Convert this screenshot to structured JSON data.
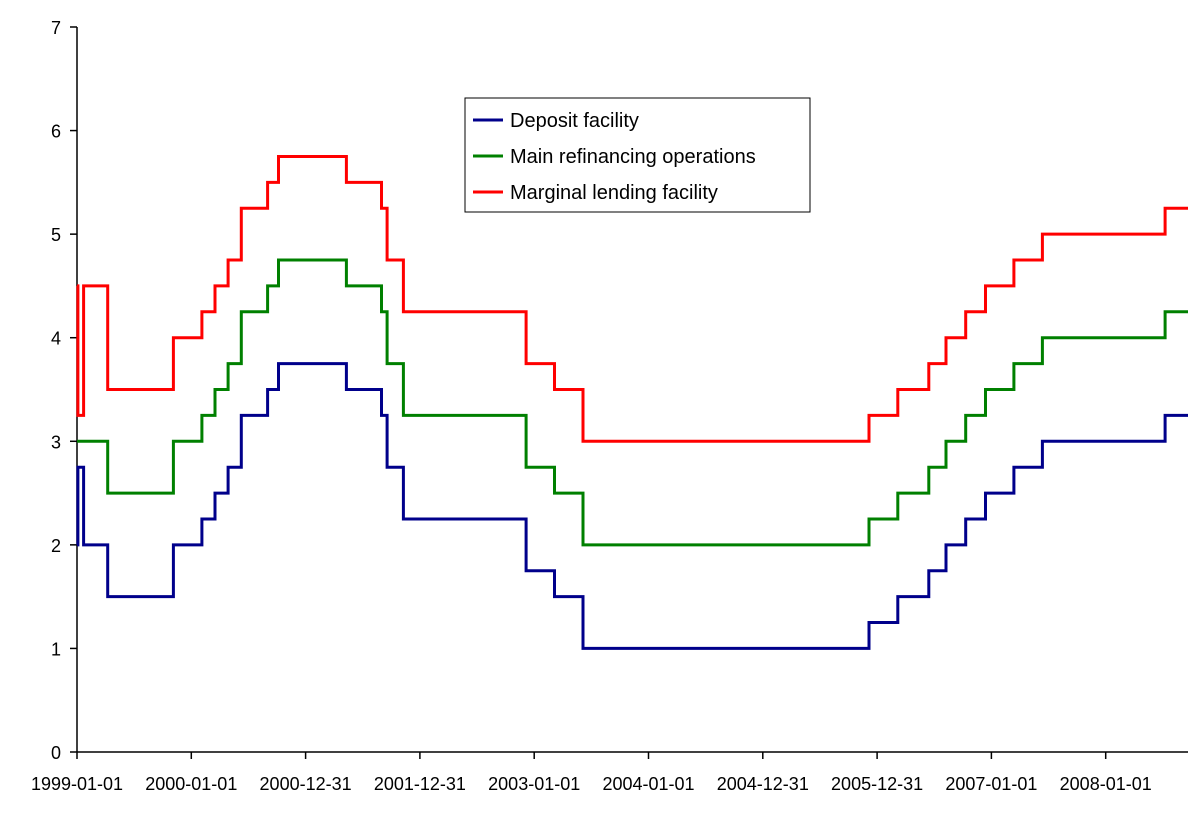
{
  "chart_data": {
    "type": "line",
    "step": true,
    "title": "",
    "xlabel": "",
    "ylabel": "",
    "x_type": "date",
    "xlim": [
      "1999-01-01",
      "2008-09-30"
    ],
    "ylim": [
      0,
      7
    ],
    "y_ticks": [
      0,
      1,
      2,
      3,
      4,
      5,
      6,
      7
    ],
    "x_tick_labels": [
      "1999-01-01",
      "2000-01-01",
      "2000-12-31",
      "2001-12-31",
      "2003-01-01",
      "2004-01-01",
      "2004-12-31",
      "2005-12-31",
      "2007-01-01",
      "2008-01-01"
    ],
    "grid": false,
    "legend_position": "top-center",
    "series": [
      {
        "name": "Deposit facility",
        "color": "#00008b",
        "points": [
          [
            "1999-01-01",
            2.0
          ],
          [
            "1999-01-04",
            2.75
          ],
          [
            "1999-01-22",
            2.0
          ],
          [
            "1999-04-09",
            1.5
          ],
          [
            "1999-11-05",
            2.0
          ],
          [
            "2000-02-04",
            2.25
          ],
          [
            "2000-03-17",
            2.5
          ],
          [
            "2000-04-28",
            2.75
          ],
          [
            "2000-06-09",
            3.25
          ],
          [
            "2000-09-01",
            3.5
          ],
          [
            "2000-10-06",
            3.75
          ],
          [
            "2001-05-11",
            3.5
          ],
          [
            "2001-08-31",
            3.25
          ],
          [
            "2001-09-18",
            2.75
          ],
          [
            "2001-11-09",
            2.25
          ],
          [
            "2002-12-06",
            1.75
          ],
          [
            "2003-03-07",
            1.5
          ],
          [
            "2003-06-06",
            1.0
          ],
          [
            "2005-12-06",
            1.25
          ],
          [
            "2006-03-08",
            1.5
          ],
          [
            "2006-06-15",
            1.75
          ],
          [
            "2006-08-09",
            2.0
          ],
          [
            "2006-10-11",
            2.25
          ],
          [
            "2006-12-13",
            2.5
          ],
          [
            "2007-03-14",
            2.75
          ],
          [
            "2007-06-13",
            3.0
          ],
          [
            "2008-07-09",
            3.25
          ],
          [
            "2008-09-30",
            3.25
          ]
        ]
      },
      {
        "name": "Main refinancing operations",
        "color": "#008000",
        "points": [
          [
            "1999-01-01",
            3.0
          ],
          [
            "1999-04-09",
            2.5
          ],
          [
            "1999-11-05",
            3.0
          ],
          [
            "2000-02-04",
            3.25
          ],
          [
            "2000-03-17",
            3.5
          ],
          [
            "2000-04-28",
            3.75
          ],
          [
            "2000-06-09",
            4.25
          ],
          [
            "2000-09-01",
            4.5
          ],
          [
            "2000-10-06",
            4.75
          ],
          [
            "2001-05-11",
            4.5
          ],
          [
            "2001-08-31",
            4.25
          ],
          [
            "2001-09-18",
            3.75
          ],
          [
            "2001-11-09",
            3.25
          ],
          [
            "2002-12-06",
            2.75
          ],
          [
            "2003-03-07",
            2.5
          ],
          [
            "2003-06-06",
            2.0
          ],
          [
            "2005-12-06",
            2.25
          ],
          [
            "2006-03-08",
            2.5
          ],
          [
            "2006-06-15",
            2.75
          ],
          [
            "2006-08-09",
            3.0
          ],
          [
            "2006-10-11",
            3.25
          ],
          [
            "2006-12-13",
            3.5
          ],
          [
            "2007-03-14",
            3.75
          ],
          [
            "2007-06-13",
            4.0
          ],
          [
            "2008-07-09",
            4.25
          ],
          [
            "2008-09-30",
            4.25
          ]
        ]
      },
      {
        "name": "Marginal lending facility",
        "color": "#ff0000",
        "points": [
          [
            "1999-01-01",
            4.5
          ],
          [
            "1999-01-04",
            3.25
          ],
          [
            "1999-01-22",
            4.5
          ],
          [
            "1999-04-09",
            3.5
          ],
          [
            "1999-11-05",
            4.0
          ],
          [
            "2000-02-04",
            4.25
          ],
          [
            "2000-03-17",
            4.5
          ],
          [
            "2000-04-28",
            4.75
          ],
          [
            "2000-06-09",
            5.25
          ],
          [
            "2000-09-01",
            5.5
          ],
          [
            "2000-10-06",
            5.75
          ],
          [
            "2001-05-11",
            5.5
          ],
          [
            "2001-08-31",
            5.25
          ],
          [
            "2001-09-18",
            4.75
          ],
          [
            "2001-11-09",
            4.25
          ],
          [
            "2002-12-06",
            3.75
          ],
          [
            "2003-03-07",
            3.5
          ],
          [
            "2003-06-06",
            3.0
          ],
          [
            "2005-12-06",
            3.25
          ],
          [
            "2006-03-08",
            3.5
          ],
          [
            "2006-06-15",
            3.75
          ],
          [
            "2006-08-09",
            4.0
          ],
          [
            "2006-10-11",
            4.25
          ],
          [
            "2006-12-13",
            4.5
          ],
          [
            "2007-03-14",
            4.75
          ],
          [
            "2007-06-13",
            5.0
          ],
          [
            "2008-07-09",
            5.25
          ],
          [
            "2008-09-30",
            5.25
          ]
        ]
      }
    ]
  }
}
